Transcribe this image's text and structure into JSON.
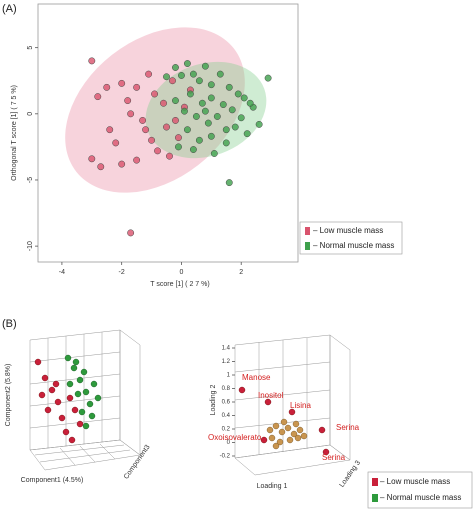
{
  "panel_labels": [
    "(A)",
    "(B)"
  ],
  "chart_data": {
    "type": "scatter",
    "xlabel": "T score [1] ( 2 7 %)",
    "ylabel": "Orthogonal T score [1] ( 7 5 %)",
    "xlim": [
      -4.8,
      3.9
    ],
    "ylim": [
      -11.2,
      8.3
    ],
    "xticks": [
      -4,
      -2,
      0,
      2
    ],
    "yticks": [
      5,
      0,
      -5,
      -10
    ],
    "series": [
      {
        "name": "– Low muscle mass",
        "color": "#d9536d",
        "x": [
          -3,
          -2.8,
          -2.5,
          -2.4,
          -2.2,
          -3,
          -2.7,
          -2,
          -1.8,
          -1.5,
          -1.3,
          -1.7,
          -1.1,
          -0.9,
          -0.6,
          -0.5,
          -1,
          -1.5,
          -0.8,
          -0.3,
          -0.2,
          0.1,
          -0.1,
          0.3,
          -1.7,
          -2,
          -0.4,
          -1.2
        ],
        "values": [
          4,
          1.3,
          2,
          -1.2,
          -2.2,
          -3.4,
          -4,
          2.3,
          1,
          2,
          -0.5,
          0,
          3,
          1.5,
          0.8,
          -1,
          -2,
          -3.5,
          -2.8,
          2.5,
          -0.5,
          0.5,
          -1.8,
          1.8,
          -9,
          -3.8,
          -3.2,
          -1.2
        ]
      },
      {
        "name": "– Normal muscle mass",
        "color": "#3ea04c",
        "x": [
          -0.5,
          -0.2,
          0,
          0.2,
          0.4,
          0.6,
          0.8,
          1,
          1.3,
          1.6,
          1.9,
          2.1,
          2.4,
          2.9,
          0.3,
          0.7,
          1,
          1.4,
          1.7,
          2,
          0.5,
          0.9,
          1.2,
          1.5,
          1.8,
          2.2,
          0.2,
          0.6,
          1,
          1.5,
          0.4,
          1.6,
          0.1,
          -0.2,
          2.6,
          1.1,
          -0.1,
          0.8,
          2.3
        ],
        "values": [
          2.8,
          3.5,
          2.9,
          3.8,
          3,
          2.5,
          3.6,
          2.2,
          3,
          2,
          1.5,
          1.2,
          0.5,
          2.7,
          1.5,
          0.8,
          1.2,
          0.7,
          0.3,
          -0.3,
          -0.2,
          -0.7,
          -0.2,
          -1.2,
          -1,
          -1.5,
          -1.2,
          -2,
          -1.7,
          -2.2,
          -2.7,
          -5.2,
          0.2,
          1,
          -0.8,
          -3,
          -2.5,
          0.2,
          0.8
        ]
      }
    ]
  },
  "panel_b": {
    "left_plot": {
      "ylabel": "Component2 (5.8%)",
      "xlabel": "Component1 (4.5%)",
      "zlabel": "Component3"
    },
    "right_plot": {
      "ylabel": "Loading 2",
      "xlabel": "Loading 1",
      "zlabel": "Loading 3",
      "yticks": [
        1.4,
        1.2,
        1,
        0.8,
        0.6,
        0.4,
        0.2,
        0,
        -0.2
      ],
      "point_labels": [
        "Manose",
        "Inositol",
        "Lisina",
        "Serina",
        "Oxoisovalerato",
        "Serina"
      ]
    },
    "legend": [
      "– Low muscle mass",
      "– Normal muscle mass"
    ]
  }
}
